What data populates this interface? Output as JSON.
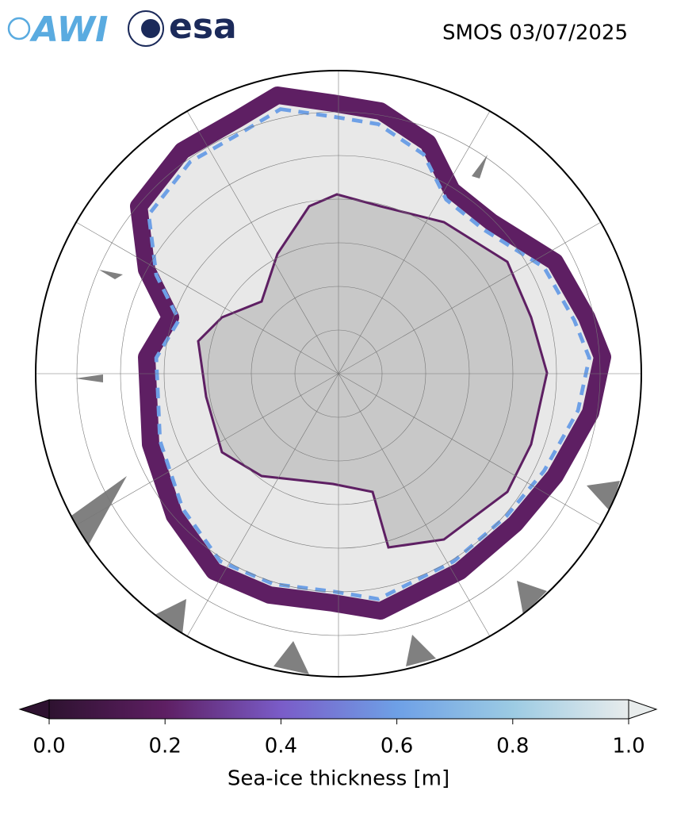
{
  "header": {
    "logos": [
      "AWI",
      "esa"
    ],
    "title": "SMOS 03/07/2025"
  },
  "colorbar": {
    "label": "Sea-ice thickness [m]",
    "xlim": [
      0,
      1
    ],
    "xticks": [
      {
        "value": 0,
        "label": "0.0"
      },
      {
        "value": 0.2,
        "label": "0.2"
      },
      {
        "value": 0.4,
        "label": "0.4"
      },
      {
        "value": 0.6,
        "label": "0.6"
      },
      {
        "value": 0.8,
        "label": "0.8"
      },
      {
        "value": 1,
        "label": "1.0"
      }
    ],
    "colors": [
      "#2e1230",
      "#5e1f63",
      "#7a5cc8",
      "#6ea0e6",
      "#9ccbe3",
      "#e8ecec"
    ]
  }
}
